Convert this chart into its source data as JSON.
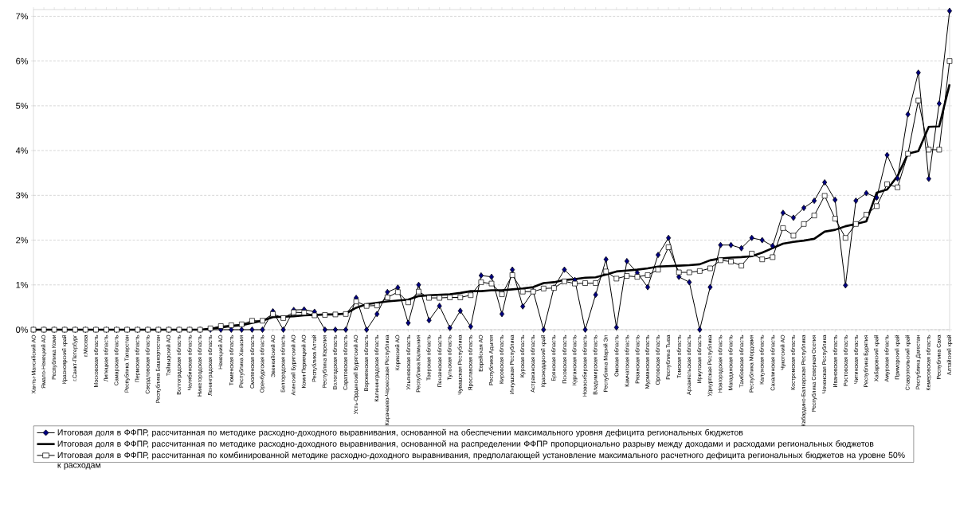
{
  "chart_data": {
    "type": "line",
    "categories": [
      "Ханты-Мансийский АО",
      "Ямало-Ненецкий АО",
      "Республика Коми",
      "Красноярский край",
      "г.Санкт-Петербург",
      "г.Москва",
      "Московская область",
      "Липецкая область",
      "Самарская область",
      "Республика Татарстан",
      "Пермская область",
      "Свердловская область",
      "Республика Башкортостан",
      "Таймырский АО",
      "Волгоградская область",
      "Челябинская область",
      "Нижегородская область",
      "Ленинградская область",
      "Ненецкий АО",
      "Тюменская область",
      "Республика Хакасия",
      "Смоленская область",
      "Оренбургская область",
      "Эвенкийский АО",
      "Белгородская область",
      "Агинский Бурятский АО",
      "Коми-Пермяцкий АО",
      "Республика Алтай",
      "Республика Карелия",
      "Вологодская область",
      "Саратовская область",
      "Усть-Ордынский Бурятский АО",
      "Воронежская область",
      "Калининградская область",
      "Карачаево-Черкесская Республика",
      "Корякский АО",
      "Ульяновская область",
      "Республика Калмыкия",
      "Тверская область",
      "Пензенская область",
      "Тульская область",
      "Чувашская Республика",
      "Ярославская область",
      "Еврейская АО",
      "Республика Адыгея",
      "Кировская область",
      "Ингушская Республика",
      "Курская область",
      "Астраханская область",
      "Краснодарский край",
      "Брянская область",
      "Псковская область",
      "Курганская область",
      "Новосибирская область",
      "Владимирская область",
      "Республика Марий Эл",
      "Омская область",
      "Камчатская область",
      "Рязанская область",
      "Мурманская область",
      "Орловская область",
      "Республика Тыва",
      "Томская область",
      "Архангельская область",
      "Иркутская область",
      "Удмуртская Республика",
      "Новгородская область",
      "Магаданская область",
      "Тамбовская область",
      "Республика Мордовия",
      "Калужская область",
      "Сахалинская область",
      "Чукотский АО",
      "Костромская область",
      "Кабардино-Балкарская Республика",
      "Республика Северная Осетия",
      "Чеченская Республика",
      "Ивановская область",
      "Ростовская область",
      "Читинская область",
      "Республика Бурятия",
      "Хабаровский край",
      "Амурская область",
      "Приморский край",
      "Ставропольский край",
      "Республика Дагестан",
      "Кемеровская область",
      "Республика Саха",
      "Алтайский край"
    ],
    "series": [
      {
        "name": "Итоговая доля в ФФПР, рассчитанная по методике расходно-доходного выравнивания, основанной на обеспечении максимального уровня дефицита региональных бюджетов",
        "color": "#000080",
        "marker": "diamond",
        "values": [
          0,
          0,
          0,
          0,
          0,
          0,
          0,
          0,
          0,
          0,
          0,
          0,
          0,
          0,
          0,
          0,
          0,
          0,
          0,
          0,
          0,
          0,
          0,
          0.41,
          0,
          0.44,
          0.45,
          0.4,
          0,
          0,
          0,
          0.71,
          0,
          0.35,
          0.84,
          0.94,
          0.15,
          1.0,
          0.21,
          0.53,
          0.04,
          0.42,
          0.07,
          1.21,
          1.18,
          0.35,
          1.34,
          0.52,
          0.86,
          0,
          0.94,
          1.34,
          1.11,
          0,
          0.78,
          1.57,
          0.05,
          1.53,
          1.27,
          0.95,
          1.67,
          2.05,
          1.18,
          1.06,
          0,
          0.95,
          1.89,
          1.89,
          1.82,
          2.05,
          2.0,
          1.87,
          2.61,
          2.5,
          2.72,
          2.88,
          3.29,
          2.9,
          0.99,
          2.88,
          3.05,
          2.95,
          3.9,
          3.38,
          4.81,
          5.74,
          3.37,
          5.05,
          7.12
        ]
      },
      {
        "name": "Итоговая доля в ФФПР, рассчитанная по методике расходно-доходного выравнивания, основанной  на распределении ФФПР пропорционально разрыву между доходами и расходами региональных бюджетов",
        "color": "#000000",
        "marker": "none",
        "values": [
          0,
          0,
          0,
          0,
          0,
          0,
          0,
          0,
          0,
          0,
          0,
          0,
          0,
          0,
          0,
          0,
          0,
          0.02,
          0.05,
          0.08,
          0.1,
          0.15,
          0.2,
          0.28,
          0.29,
          0.3,
          0.32,
          0.33,
          0.34,
          0.34,
          0.36,
          0.49,
          0.57,
          0.6,
          0.63,
          0.65,
          0.67,
          0.75,
          0.77,
          0.78,
          0.79,
          0.82,
          0.86,
          0.86,
          0.88,
          0.88,
          0.9,
          0.92,
          0.95,
          1.04,
          1.06,
          1.11,
          1.13,
          1.16,
          1.17,
          1.23,
          1.3,
          1.32,
          1.34,
          1.37,
          1.41,
          1.42,
          1.43,
          1.44,
          1.46,
          1.55,
          1.59,
          1.61,
          1.62,
          1.64,
          1.72,
          1.82,
          1.92,
          1.96,
          1.99,
          2.03,
          2.19,
          2.23,
          2.31,
          2.36,
          2.42,
          3.06,
          3.13,
          3.43,
          3.93,
          3.99,
          4.53,
          4.54,
          5.48
        ]
      },
      {
        "name": "Итоговая доля в ФФПР, рассчитанная по комбинированной методике расходно-доходного выравнивания, предполагающей установление максимального расчетного дефицита региональных бюджетов на уровне 50% к расходам",
        "color": "#ffffff",
        "marker": "square",
        "values": [
          0,
          0,
          0,
          0,
          0,
          0,
          0,
          0,
          0,
          0,
          0,
          0,
          0,
          0,
          0,
          0,
          0,
          0.03,
          0.08,
          0.1,
          0.12,
          0.2,
          0.2,
          0.35,
          0.26,
          0.39,
          0.38,
          0.32,
          0.33,
          0.34,
          0.35,
          0.63,
          0.53,
          0.54,
          0.72,
          0.84,
          0.61,
          0.85,
          0.71,
          0.71,
          0.72,
          0.72,
          0.77,
          1.06,
          1.03,
          0.79,
          1.22,
          0.85,
          0.85,
          0.92,
          0.93,
          1.08,
          1.03,
          1.04,
          1.04,
          1.3,
          1.14,
          1.2,
          1.18,
          1.22,
          1.34,
          1.84,
          1.28,
          1.28,
          1.31,
          1.37,
          1.55,
          1.52,
          1.43,
          1.7,
          1.57,
          1.62,
          2.27,
          2.1,
          2.36,
          2.55,
          2.99,
          2.48,
          2.05,
          2.36,
          2.57,
          2.76,
          3.25,
          3.18,
          3.93,
          5.12,
          4.02,
          4.02,
          6.0
        ]
      }
    ],
    "ylim": [
      0,
      7.15
    ],
    "yticks": [
      {
        "value": 0,
        "label": "0%"
      },
      {
        "value": 1,
        "label": "1%"
      },
      {
        "value": 2,
        "label": "2%"
      },
      {
        "value": 3,
        "label": "3%"
      },
      {
        "value": 4,
        "label": "4%"
      },
      {
        "value": 5,
        "label": "5%"
      },
      {
        "value": 6,
        "label": "6%"
      },
      {
        "value": 7,
        "label": "7%"
      }
    ],
    "grid": "y",
    "legend": "bottom",
    "line_style": "solid"
  }
}
